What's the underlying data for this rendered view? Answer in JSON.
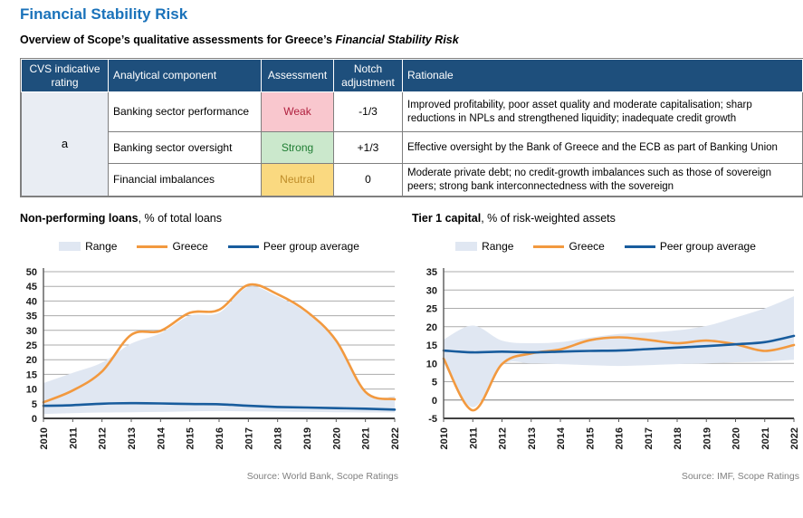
{
  "page": {
    "title": "Financial Stability Risk",
    "subtitle_prefix": "Overview of Scope’s qualitative assessments for Greece’s ",
    "subtitle_italic": "Financial Stability Risk"
  },
  "table": {
    "headers": [
      "CVS indicative rating",
      "Analytical component",
      "Assessment",
      "Notch adjustment",
      "Rationale"
    ],
    "cvs_rating": "a",
    "rows": [
      {
        "component": "Banking sector performance",
        "assessment": "Weak",
        "notch": "-1/3",
        "rationale": "Improved profitability, poor asset quality and moderate capitalisation; sharp reductions in NPLs and strengthened liquidity; inadequate credit growth",
        "assessment_bg": "#F9C7CE",
        "assessment_color": "#B01F3E"
      },
      {
        "component": "Banking sector oversight",
        "assessment": "Strong",
        "notch": "+1/3",
        "rationale": "Effective oversight by the Bank of Greece and the ECB as part of Banking Union",
        "assessment_bg": "#CBE8CC",
        "assessment_color": "#1F7D33"
      },
      {
        "component": "Financial imbalances",
        "assessment": "Neutral",
        "notch": "0",
        "rationale": "Moderate private debt; no credit-growth imbalances such as those of sovereign peers; strong bank interconnectedness with the sovereign",
        "assessment_bg": "#FAD980",
        "assessment_color": "#BE8C28"
      }
    ]
  },
  "chart_data": [
    {
      "type": "line",
      "title": "Non-performing loans",
      "title_suffix": ", % of total loans",
      "x": [
        2010,
        2011,
        2012,
        2013,
        2014,
        2015,
        2016,
        2017,
        2018,
        2019,
        2020,
        2021,
        2022
      ],
      "ylim": [
        0,
        50
      ],
      "ytick_step": 5,
      "yticks": [
        0,
        5,
        10,
        15,
        20,
        25,
        30,
        35,
        40,
        45,
        50
      ],
      "grid": true,
      "legend_position": "top",
      "source": "Source: World Bank, Scope Ratings",
      "series": [
        {
          "name": "Range",
          "type": "band",
          "fill": "#E0E7F2",
          "upper": [
            12,
            15.5,
            19,
            25.5,
            29,
            35,
            36,
            44.8,
            41.5,
            35.8,
            26,
            8.5,
            7.5
          ],
          "lower": [
            1.5,
            1.8,
            2,
            2.1,
            2.2,
            2.4,
            2.5,
            2.4,
            2.3,
            2.2,
            2.1,
            2,
            2
          ]
        },
        {
          "name": "Greece",
          "type": "line",
          "color": "#F2993F",
          "values": [
            5.5,
            9.5,
            16,
            28.5,
            29.8,
            36,
            37,
            45.5,
            42.3,
            36.4,
            26.5,
            9,
            6.5
          ]
        },
        {
          "name": "Peer group average",
          "type": "line",
          "color": "#185C9D",
          "values": [
            4.3,
            4.5,
            5,
            5.2,
            5.1,
            4.9,
            4.8,
            4.3,
            3.9,
            3.7,
            3.5,
            3.3,
            3
          ]
        }
      ]
    },
    {
      "type": "line",
      "title": "Tier 1 capital",
      "title_suffix": ", % of risk-weighted assets",
      "x": [
        2010,
        2011,
        2012,
        2013,
        2014,
        2015,
        2016,
        2017,
        2018,
        2019,
        2020,
        2021,
        2022
      ],
      "ylim": [
        -5,
        35
      ],
      "ytick_step": 5,
      "yticks": [
        -5,
        0,
        5,
        10,
        15,
        20,
        25,
        30,
        35
      ],
      "grid": true,
      "legend_position": "top",
      "source": "Source: IMF, Scope Ratings",
      "series": [
        {
          "name": "Range",
          "type": "band",
          "fill": "#E0E7F2",
          "upper": [
            16.5,
            20.3,
            16.2,
            15.5,
            15.8,
            17,
            18,
            18.4,
            19,
            20.2,
            22.5,
            25,
            28.3
          ],
          "lower": [
            10,
            -2,
            9.5,
            10,
            9.8,
            9.5,
            9.3,
            9.5,
            9.8,
            10,
            10.3,
            10.5,
            11
          ]
        },
        {
          "name": "Greece",
          "type": "line",
          "color": "#F2993F",
          "values": [
            11.3,
            -2.8,
            9.8,
            12.7,
            13.8,
            16.3,
            17.1,
            16.4,
            15.5,
            16.2,
            15.2,
            13.4,
            15
          ]
        },
        {
          "name": "Peer group average",
          "type": "line",
          "color": "#185C9D",
          "values": [
            13.5,
            13,
            13.2,
            13,
            13.2,
            13.4,
            13.5,
            13.9,
            14.3,
            14.7,
            15.2,
            15.8,
            17.5
          ]
        }
      ]
    }
  ],
  "colors": {
    "title_blue": "#1A72BA",
    "table_header_bg": "#1E4F7C",
    "cvs_cell_bg": "#E9EDF3",
    "range_fill": "#E0E7F2",
    "greece_orange": "#F2993F",
    "peer_blue": "#185C9D",
    "grid_gray": "#ABABAB",
    "axis_dark": "#404040",
    "source_gray": "#7F7F7F"
  }
}
